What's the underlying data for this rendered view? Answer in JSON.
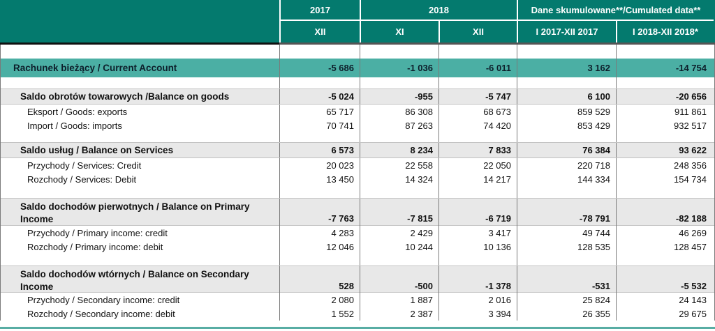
{
  "header": {
    "year_2017": "2017",
    "year_2018": "2018",
    "cumulated": "Dane skumulowane**/Cumulated data**",
    "sub_columns": [
      "XII",
      "XI",
      "XII",
      "I 2017-XII 2017",
      "I 2018-XII 2018*"
    ]
  },
  "rows": [
    {
      "type": "highlight",
      "label": "Rachunek bieżący / Current Account",
      "values": [
        "-5 686",
        "-1 036",
        "-6 011",
        "3 162",
        "-14 754"
      ]
    },
    {
      "type": "section",
      "label": "Saldo obrotów towarowych /Balance on goods",
      "values": [
        "-5 024",
        "-955",
        "-5 747",
        "6 100",
        "-20 656"
      ]
    },
    {
      "type": "sub",
      "label": "Eksport / Goods: exports",
      "values": [
        "65 717",
        "86 308",
        "68 673",
        "859 529",
        "911 861"
      ]
    },
    {
      "type": "sub",
      "label": "Import / Goods: imports",
      "values": [
        "70 741",
        "87 263",
        "74 420",
        "853 429",
        "932 517"
      ]
    },
    {
      "type": "section",
      "label": "Saldo usług / Balance on Services",
      "values": [
        "6 573",
        "8 234",
        "7 833",
        "76 384",
        "93 622"
      ]
    },
    {
      "type": "sub",
      "label": "Przychody / Services: Credit",
      "values": [
        "20 023",
        "22 558",
        "22 050",
        "220 718",
        "248 356"
      ]
    },
    {
      "type": "sub",
      "label": "Rozchody / Services: Debit",
      "values": [
        "13 450",
        "14 324",
        "14 217",
        "144 334",
        "154 734"
      ]
    },
    {
      "type": "section2",
      "label": "Saldo dochodów pierwotnych / Balance on Primary Income",
      "values": [
        "-7 763",
        "-7 815",
        "-6 719",
        "-78 791",
        "-82 188"
      ]
    },
    {
      "type": "sub",
      "label": "Przychody / Primary income: credit",
      "values": [
        "4 283",
        "2 429",
        "3 417",
        "49 744",
        "46 269"
      ]
    },
    {
      "type": "sub",
      "label": "Rozchody / Primary income: debit",
      "values": [
        "12 046",
        "10 244",
        "10 136",
        "128 535",
        "128 457"
      ]
    },
    {
      "type": "section2",
      "label": "Saldo dochodów wtórnych / Balance on Secondary Income",
      "values": [
        "528",
        "-500",
        "-1 378",
        "-531",
        "-5 532"
      ]
    },
    {
      "type": "sub",
      "label": "Przychody / Secondary income: credit",
      "values": [
        "2 080",
        "1 887",
        "2 016",
        "25 824",
        "24 143"
      ]
    },
    {
      "type": "sub",
      "label": "Rozchody / Secondary income: debit",
      "values": [
        "1 552",
        "2 387",
        "3 394",
        "26 355",
        "29 675"
      ]
    }
  ],
  "colors": {
    "header_teal": "#047a6e",
    "highlight_teal": "#4bafa4",
    "section_gray": "#e8e8e8",
    "border_gray": "#7a7a7a",
    "bottom_line_teal": "#58ada4",
    "header_text": "#ffffff",
    "body_text": "#111111"
  }
}
